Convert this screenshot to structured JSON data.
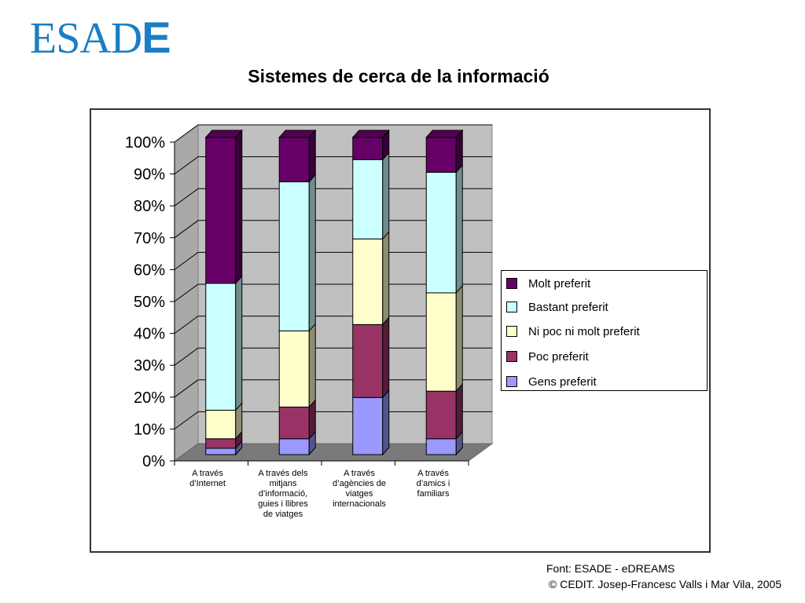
{
  "logo": {
    "main": "ESAD",
    "last": "E"
  },
  "chart_data": {
    "type": "bar",
    "stacked": true,
    "percent": true,
    "title": "Sistemes de cerca de la informació",
    "categories": [
      "A través d'Internet",
      "A través dels mitjans d'informació, guies i llibres de viatges",
      "A través d'agències de viatges internacionals",
      "A través d'amics i familiars"
    ],
    "y_tick_labels": [
      "0%",
      "10%",
      "20%",
      "30%",
      "40%",
      "50%",
      "60%",
      "70%",
      "80%",
      "90%",
      "100%"
    ],
    "ylim": [
      0,
      100
    ],
    "grid": true,
    "legend_position": "right",
    "series": [
      {
        "name": "Gens preferit",
        "values": [
          2,
          5,
          18,
          5
        ],
        "color": "#9999ff"
      },
      {
        "name": "Poc preferit",
        "values": [
          3,
          10,
          23,
          15
        ],
        "color": "#993366"
      },
      {
        "name": "Ni poc ni molt preferit",
        "values": [
          9,
          24,
          27,
          31
        ],
        "color": "#ffffcc"
      },
      {
        "name": "Bastant preferit",
        "values": [
          40,
          47,
          25,
          38
        ],
        "color": "#ccffff"
      },
      {
        "name": "Molt preferit",
        "values": [
          46,
          14,
          7,
          11
        ],
        "color": "#660066"
      }
    ]
  },
  "legend": {
    "items": [
      {
        "label": "Molt preferit",
        "color": "#660066"
      },
      {
        "label": "Bastant preferit",
        "color": "#ccffff"
      },
      {
        "label": "Ni poc ni molt preferit",
        "color": "#ffffcc"
      },
      {
        "label": "Poc preferit",
        "color": "#993366"
      },
      {
        "label": "Gens preferit",
        "color": "#9999ff"
      }
    ]
  },
  "category_labels": [
    "A través\nd’Internet",
    "A través dels\nmitjans\nd’informació,\nguies i llibres\nde viatges",
    "A través\nd’agències de\nviatges\ninternacionals",
    "A través\nd’amics i\nfamiliars"
  ],
  "footer": {
    "source": "Font: ESADE - eDREAMS",
    "copyright": "© CEDIT. Josep-Francesc Valls i Mar Vila, 2005"
  }
}
